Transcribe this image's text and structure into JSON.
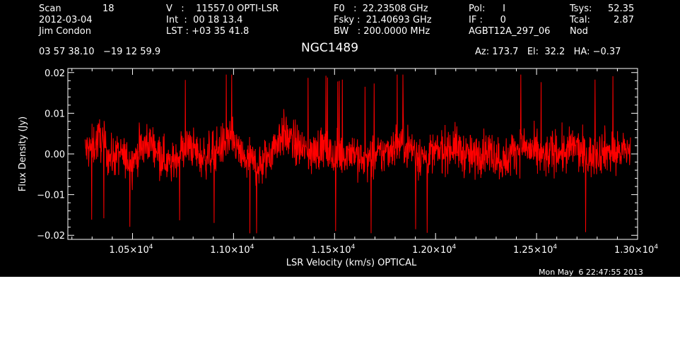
{
  "header": {
    "scan_label": "Scan",
    "scan_value": "18",
    "date": "2012-03-04",
    "observer": "Jim Condon",
    "v_line": "V   :    11557.0 OPTI-LSR",
    "int_line": "Int  :  00 18 13.4",
    "lst_line": "LST : +03 35 41.8",
    "f0_line": "F0   :  22.23508 GHz",
    "fsky_line": "Fsky :  21.40693 GHz",
    "bw_line": "BW   : 200.0000 MHz",
    "pol_line": "Pol:      I",
    "if_line": "IF :      0",
    "project": "AGBT12A_297_06",
    "tsys_label": "Tsys:",
    "tsys_value": "52.35",
    "tcal_label": "Tcal:",
    "tcal_value": "2.87",
    "mode": "Nod",
    "coords": "03 57 38.10   −19 12 59.9",
    "source": "NGC1489",
    "pointing": "Az: 173.7   El:  32.2   HA: −0.37",
    "timestamp": "Mon May  6 22:47:55 2013"
  },
  "chart_data": {
    "type": "line",
    "xlabel": "LSR Velocity (km/s) OPTICAL",
    "ylabel": "Flux Density (Jy)",
    "xlim": [
      10180,
      13000
    ],
    "ylim": [
      -0.021,
      0.021
    ],
    "x_ticks": [
      {
        "value": 10500,
        "label": "1.05×10",
        "exp": "4"
      },
      {
        "value": 11000,
        "label": "1.10×10",
        "exp": "4"
      },
      {
        "value": 11500,
        "label": "1.15×10",
        "exp": "4"
      },
      {
        "value": 12000,
        "label": "1.20×10",
        "exp": "4"
      },
      {
        "value": 12500,
        "label": "1.25×10",
        "exp": "4"
      },
      {
        "value": 13000,
        "label": "1.30×10",
        "exp": "4"
      }
    ],
    "y_ticks": [
      {
        "value": 0.02,
        "label": "0.02"
      },
      {
        "value": 0.01,
        "label": "0.01"
      },
      {
        "value": 0.0,
        "label": "0.00"
      },
      {
        "value": -0.01,
        "label": "−0.01"
      },
      {
        "value": -0.02,
        "label": "−0.02"
      }
    ],
    "series": [
      {
        "color": "#ff0000",
        "x": [
          10290,
          10340,
          10390,
          10440,
          10490,
          10540,
          10590,
          10640,
          10690,
          10740,
          10790,
          10840,
          10890,
          10940,
          10990,
          11040,
          11090,
          11140,
          11190,
          11240,
          11290,
          11340,
          11390,
          11440,
          11490,
          11540,
          11590,
          11640,
          11690,
          11740,
          11790,
          11840,
          11890,
          11940,
          11990,
          12040,
          12090,
          12140,
          12190,
          12240,
          12290,
          12340,
          12390,
          12440,
          12490,
          12540,
          12590,
          12640,
          12690,
          12740,
          12790,
          12840,
          12890,
          12940
        ],
        "y": [
          0.001,
          0.004,
          -0.001,
          0.0,
          -0.002,
          0.001,
          0.003,
          0.0,
          -0.003,
          0.001,
          0.002,
          -0.001,
          0.0,
          0.002,
          0.004,
          -0.001,
          -0.002,
          -0.003,
          0.001,
          0.005,
          0.003,
          0.001,
          0.0,
          0.002,
          -0.001,
          0.0,
          0.001,
          -0.002,
          -0.001,
          0.0,
          0.002,
          0.003,
          0.001,
          -0.001,
          0.0,
          0.001,
          0.002,
          0.0,
          -0.001,
          0.001,
          0.0,
          -0.002,
          0.001,
          0.002,
          0.0,
          -0.001,
          0.001,
          0.0,
          0.002,
          -0.001,
          0.0,
          0.001,
          0.0,
          0.001
        ],
        "y_low": [
          -0.012,
          -0.01,
          -0.013,
          -0.011,
          -0.012,
          -0.01,
          -0.009,
          -0.012,
          -0.014,
          -0.011,
          -0.01,
          -0.013,
          -0.012,
          -0.011,
          -0.01,
          -0.014,
          -0.015,
          -0.018,
          -0.012,
          -0.009,
          -0.01,
          -0.012,
          -0.013,
          -0.011,
          -0.014,
          -0.013,
          -0.012,
          -0.015,
          -0.014,
          -0.012,
          -0.011,
          -0.01,
          -0.013,
          -0.015,
          -0.013,
          -0.012,
          -0.011,
          -0.013,
          -0.014,
          -0.012,
          -0.013,
          -0.015,
          -0.012,
          -0.011,
          -0.013,
          -0.014,
          -0.012,
          -0.013,
          -0.011,
          -0.014,
          -0.013,
          -0.012,
          -0.014,
          -0.01
        ],
        "y_high": [
          0.011,
          0.014,
          0.01,
          0.011,
          0.009,
          0.012,
          0.013,
          0.01,
          0.008,
          0.011,
          0.012,
          0.01,
          0.011,
          0.012,
          0.014,
          0.01,
          0.009,
          0.008,
          0.012,
          0.016,
          0.014,
          0.012,
          0.011,
          0.013,
          0.01,
          0.011,
          0.012,
          0.009,
          0.01,
          0.011,
          0.013,
          0.014,
          0.012,
          0.01,
          0.011,
          0.012,
          0.013,
          0.011,
          0.01,
          0.012,
          0.011,
          0.009,
          0.012,
          0.013,
          0.011,
          0.01,
          0.012,
          0.011,
          0.013,
          0.01,
          0.011,
          0.012,
          0.011,
          0.012
        ]
      }
    ]
  }
}
